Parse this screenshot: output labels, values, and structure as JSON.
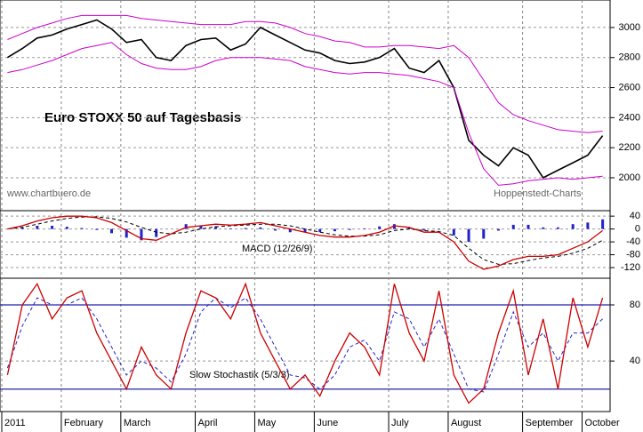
{
  "chart_data": [
    {
      "type": "line",
      "title": "Euro STOXX 50 auf Tagesbasis",
      "source": "www.chartbuero.de",
      "credit": "Hoppenstedt-Charts",
      "ylim": [
        1781,
        3183
      ],
      "yticks": [
        2000,
        2200,
        2400,
        2600,
        2800,
        3000
      ],
      "grid": true,
      "series": [
        {
          "color": "#000000",
          "width": 1.6,
          "values": [
            2800,
            2860,
            2930,
            2950,
            2990,
            3020,
            3050,
            2990,
            2900,
            2920,
            2800,
            2780,
            2880,
            2920,
            2930,
            2850,
            2890,
            3000,
            2950,
            2900,
            2850,
            2830,
            2780,
            2760,
            2770,
            2800,
            2860,
            2730,
            2700,
            2780,
            2600,
            2250,
            2150,
            2080,
            2200,
            2150,
            2000,
            2050,
            2100,
            2150,
            2280
          ]
        },
        {
          "color": "#cc00cc",
          "width": 1,
          "values": [
            2920,
            2960,
            3000,
            3030,
            3060,
            3080,
            3080,
            3080,
            3080,
            3060,
            3050,
            3040,
            3030,
            3020,
            3020,
            3020,
            3040,
            3040,
            3030,
            3000,
            2960,
            2940,
            2910,
            2900,
            2870,
            2870,
            2880,
            2880,
            2870,
            2860,
            2880,
            2800,
            2650,
            2500,
            2420,
            2380,
            2350,
            2320,
            2310,
            2300,
            2310
          ]
        },
        {
          "color": "#cc00cc",
          "width": 1,
          "values": [
            2700,
            2720,
            2750,
            2780,
            2820,
            2860,
            2880,
            2900,
            2820,
            2760,
            2730,
            2720,
            2720,
            2740,
            2780,
            2800,
            2800,
            2800,
            2790,
            2780,
            2740,
            2720,
            2700,
            2690,
            2700,
            2700,
            2690,
            2680,
            2660,
            2640,
            2600,
            2300,
            2060,
            1950,
            1960,
            1980,
            1990,
            2000,
            1990,
            2000,
            2010
          ]
        }
      ]
    },
    {
      "type": "line",
      "title": "MACD (12/26/9)",
      "ylim": [
        -153,
        57
      ],
      "yticks": [
        40,
        0,
        -40,
        -80,
        -120
      ],
      "grid": true,
      "series": [
        {
          "color": "#2222cc",
          "kind": "bar",
          "values": [
            0,
            5,
            10,
            10,
            7,
            3,
            -3,
            -13,
            -27,
            -35,
            -25,
            0,
            15,
            10,
            8,
            2,
            3,
            5,
            -5,
            -10,
            -10,
            -10,
            -7,
            -3,
            2,
            8,
            15,
            5,
            -5,
            -2,
            -20,
            -40,
            -30,
            -5,
            13,
            13,
            5,
            5,
            15,
            20,
            30
          ]
        },
        {
          "color": "#000000",
          "dash": true,
          "width": 1,
          "values": [
            0,
            5,
            15,
            25,
            33,
            37,
            38,
            33,
            22,
            5,
            -10,
            -15,
            -10,
            0,
            7,
            10,
            12,
            15,
            15,
            10,
            0,
            -10,
            -18,
            -22,
            -22,
            -18,
            -5,
            0,
            -5,
            -8,
            -20,
            -60,
            -95,
            -110,
            -108,
            -98,
            -90,
            -85,
            -75,
            -60,
            -35
          ]
        },
        {
          "color": "#cc0000",
          "width": 1.3,
          "values": [
            0,
            10,
            25,
            35,
            40,
            40,
            35,
            20,
            -5,
            -30,
            -35,
            -15,
            5,
            10,
            15,
            12,
            15,
            20,
            10,
            0,
            -10,
            -20,
            -25,
            -25,
            -20,
            -10,
            10,
            5,
            -10,
            -10,
            -40,
            -100,
            -125,
            -115,
            -95,
            -85,
            -85,
            -80,
            -60,
            -40,
            -5
          ]
        }
      ]
    },
    {
      "type": "line",
      "title": "Slow Stochastik (5/3/3)",
      "ylim": [
        4,
        99
      ],
      "yticks": [
        80,
        40
      ],
      "grid": true,
      "hlines": [
        80,
        20
      ],
      "categories": [
        "2011",
        null,
        null,
        null,
        "February",
        null,
        null,
        null,
        "March",
        null,
        null,
        null,
        null,
        "April",
        null,
        null,
        null,
        "May",
        null,
        null,
        null,
        "June",
        null,
        null,
        null,
        null,
        "July",
        null,
        null,
        null,
        "August",
        null,
        null,
        null,
        null,
        "September",
        null,
        null,
        null,
        "October",
        null
      ],
      "series": [
        {
          "color": "#2222cc",
          "dash": true,
          "width": 1,
          "values": [
            35,
            65,
            85,
            80,
            80,
            85,
            70,
            50,
            30,
            40,
            35,
            25,
            45,
            75,
            85,
            78,
            85,
            70,
            50,
            30,
            28,
            20,
            30,
            50,
            55,
            40,
            75,
            70,
            50,
            70,
            45,
            20,
            18,
            45,
            75,
            50,
            60,
            40,
            60,
            60,
            70
          ]
        },
        {
          "color": "#cc0000",
          "width": 1.3,
          "values": [
            30,
            80,
            95,
            70,
            85,
            90,
            60,
            40,
            20,
            50,
            30,
            20,
            60,
            90,
            85,
            70,
            95,
            60,
            40,
            20,
            30,
            15,
            40,
            60,
            50,
            30,
            95,
            60,
            40,
            90,
            30,
            10,
            20,
            60,
            90,
            30,
            70,
            20,
            85,
            50,
            85
          ]
        }
      ]
    }
  ]
}
